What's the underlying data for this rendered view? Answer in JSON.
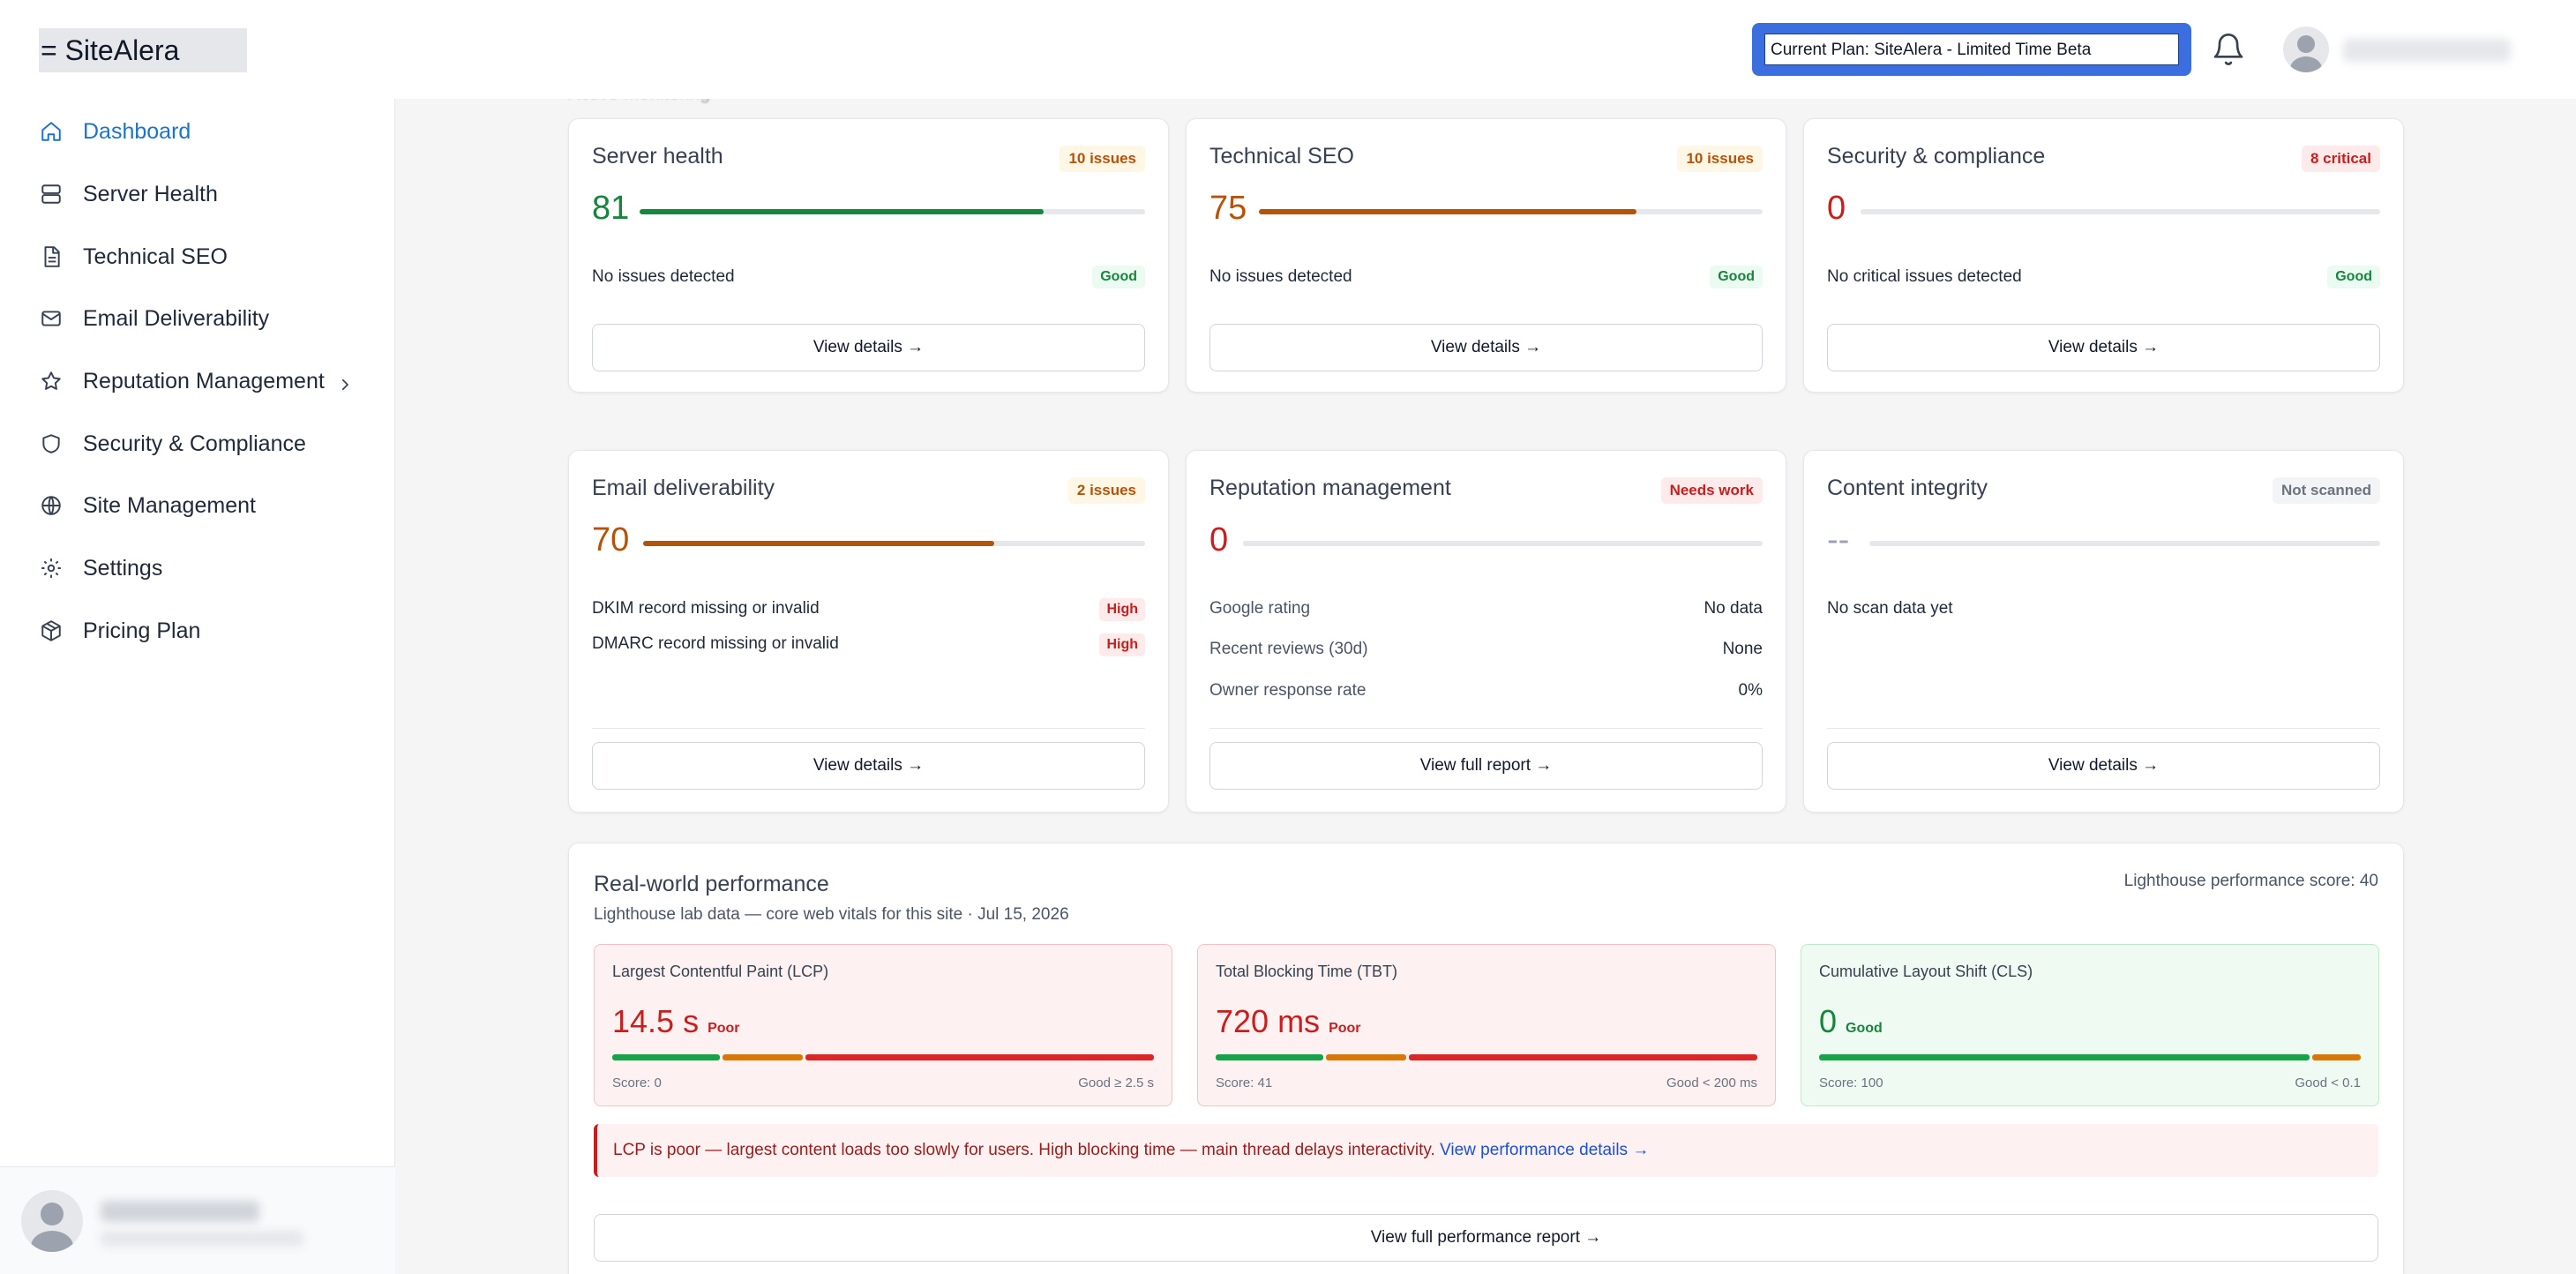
{
  "header": {
    "logo": "= SiteAlera",
    "plan_label": "Current Plan: SiteAlera - Limited Time Beta"
  },
  "sidebar": {
    "items": [
      {
        "label": "Dashboard",
        "icon": "home-icon"
      },
      {
        "label": "Server Health",
        "icon": "server-icon"
      },
      {
        "label": "Technical SEO",
        "icon": "document-icon"
      },
      {
        "label": "Email Deliverability",
        "icon": "mail-icon"
      },
      {
        "label": "Reputation Management",
        "icon": "star-icon"
      },
      {
        "label": "Security & Compliance",
        "icon": "shield-icon"
      },
      {
        "label": "Site Management",
        "icon": "globe-icon"
      },
      {
        "label": "Settings",
        "icon": "gear-icon"
      },
      {
        "label": "Pricing Plan",
        "icon": "package-icon"
      }
    ]
  },
  "section_label": "Active Monitoring",
  "cards": {
    "server": {
      "title": "Server health",
      "badge": "10 issues",
      "score": "81",
      "progress": 0.8,
      "status": "No issues detected",
      "status_badge": "Good",
      "button": "View details →"
    },
    "seo": {
      "title": "Technical SEO",
      "badge": "10 issues",
      "score": "75",
      "progress": 0.75,
      "status": "No issues detected",
      "status_badge": "Good",
      "button": "View details →"
    },
    "security": {
      "title": "Security & compliance",
      "badge": "8 critical",
      "score": "0",
      "progress": 0,
      "status": "No critical issues detected",
      "status_badge": "Good",
      "button": "View details →"
    },
    "email": {
      "title": "Email deliverability",
      "badge": "2 issues",
      "score": "70",
      "progress": 0.7,
      "issues": [
        {
          "text": "DKIM record missing or invalid",
          "severity": "High"
        },
        {
          "text": "DMARC record missing or invalid",
          "severity": "High"
        }
      ],
      "button": "View details →"
    },
    "reputation": {
      "title": "Reputation management",
      "badge": "Needs work",
      "score": "0",
      "progress": 0,
      "rows": [
        {
          "label": "Google rating",
          "value": "No data"
        },
        {
          "label": "Recent reviews (30d)",
          "value": "None"
        },
        {
          "label": "Owner response rate",
          "value": "0%"
        }
      ],
      "button": "View full report →"
    },
    "content": {
      "title": "Content integrity",
      "badge": "Not scanned",
      "score": "--",
      "progress": 0,
      "status": "No scan data yet",
      "button": "View details →"
    }
  },
  "performance": {
    "title": "Real-world performance",
    "subtitle": "Lighthouse lab data — core web vitals for this site · Jul 15, 2026",
    "lighthouse_score": "Lighthouse performance score: 40",
    "metrics": [
      {
        "label": "Largest Contentful Paint (LCP)",
        "value": "14.5 s",
        "rating": "Poor",
        "score": "Score: 0",
        "threshold": "Good ≥ 2.5 s"
      },
      {
        "label": "Total Blocking Time (TBT)",
        "value": "720 ms",
        "rating": "Poor",
        "score": "Score: 41",
        "threshold": "Good < 200 ms"
      },
      {
        "label": "Cumulative Layout Shift (CLS)",
        "value": "0",
        "rating": "Good",
        "score": "Score: 100",
        "threshold": "Good < 0.1"
      }
    ],
    "alert_text": "LCP is poor — largest content loads too slowly for users. High blocking time — main thread delays interactivity.",
    "alert_link": "View performance details →",
    "full_report_button": "View full performance report →"
  },
  "colors": {
    "accent": "#1d73c9",
    "good": "#16853e",
    "warn": "#b45309",
    "poor": "#c81e1e"
  }
}
